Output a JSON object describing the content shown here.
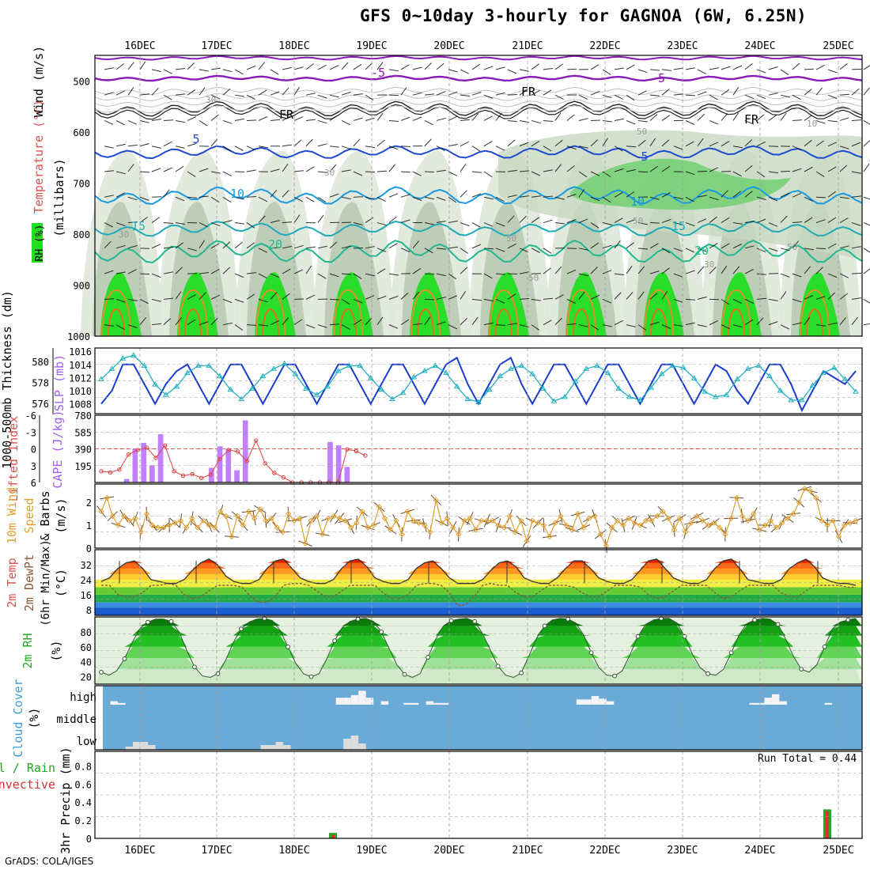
{
  "title": "GFS 0~10day 3-hourly for GAGNOA (6W, 6.25N)",
  "footer": "GrADS: COLA/IGES",
  "run_total": "Run Total = 0.44",
  "colors": {
    "grid": "#a0a0a0",
    "cloud_bg": "#6aaad6",
    "cloud_bar": "#dcdcdc",
    "cape": "#c080ff",
    "lifted": "#e04040",
    "wind": "#e0a030",
    "slp": "#1a3ccc",
    "thickness": "#20b0c0",
    "rh_green": "#22bb22",
    "precip": "#22aa22"
  },
  "chart_data": [
    {
      "panel": "upper-air",
      "type": "heatmap",
      "xlabels": [
        "16DEC",
        "17DEC",
        "18DEC",
        "19DEC",
        "20DEC",
        "21DEC",
        "22DEC",
        "23DEC",
        "24DEC",
        "25DEC"
      ],
      "ylabel_parts": [
        "RH (%)",
        "Temperature (°C)",
        "Wind (m/s)"
      ],
      "ylabel_unit": "(millibars)",
      "yticks": [
        "500",
        "600",
        "700",
        "800",
        "900",
        "1000"
      ],
      "isotherm_labels": [
        "-5",
        "-5",
        "FR",
        "FR",
        "FR",
        "5",
        "5",
        "10",
        "10",
        "15",
        "15",
        "20",
        "20"
      ],
      "rh_labels": [
        "30",
        "30",
        "50",
        "50",
        "50",
        "10",
        "30",
        "50",
        "50",
        "30"
      ]
    },
    {
      "panel": "thickness-slp",
      "type": "line",
      "ylabel_left": "1000-500mb Thickness (dm)",
      "ylabel_right": "SLP (mb)",
      "left_ticks": [
        "580",
        "578",
        "576"
      ],
      "right_ticks": [
        "1016",
        "1014",
        "1012",
        "1010",
        "1008"
      ],
      "series": [
        {
          "name": "SLP (mb)",
          "values": [
            1008,
            1010,
            1014,
            1014,
            1011,
            1008,
            1011,
            1013,
            1014,
            1011,
            1008,
            1011,
            1014,
            1014,
            1011,
            1008,
            1011,
            1014,
            1014,
            1011,
            1008,
            1011,
            1014,
            1014,
            1011,
            1008,
            1011,
            1014,
            1014,
            1011,
            1008,
            1011,
            1014,
            1015,
            1011,
            1008,
            1011,
            1014,
            1015,
            1011,
            1008,
            1011,
            1014,
            1014,
            1011,
            1008,
            1011,
            1014,
            1014,
            1011,
            1008,
            1011,
            1014,
            1014,
            1011,
            1008,
            1011,
            1014,
            1013,
            1010,
            1008,
            1011,
            1014,
            1014,
            1011,
            1007,
            1010,
            1013,
            1012,
            1011,
            1013
          ]
        },
        {
          "name": "1000-500mb Thickness (dm)",
          "values": [
            578.3,
            579.3,
            580.3,
            580.6,
            579.6,
            577.8,
            576.8,
            577.6,
            578.9,
            579.6,
            579.6,
            578.6,
            577.3,
            576.4,
            577.4,
            578.6,
            579.3,
            579.8,
            578.8,
            577.4,
            576.8,
            577.6,
            579.1,
            579.6,
            579.6,
            578.4,
            577.3,
            576.4,
            577.0,
            578.5,
            579.1,
            579.6,
            578.9,
            577.6,
            576.4,
            576.1,
            577.3,
            578.6,
            579.3,
            579.6,
            578.8,
            577.4,
            576.2,
            576.6,
            578.1,
            579.3,
            579.6,
            578.9,
            577.4,
            576.6,
            576.3,
            577.5,
            578.8,
            579.6,
            579.4,
            578.4,
            577.1,
            576.6,
            576.8,
            578.3,
            579.3,
            579.6,
            578.6,
            577.2,
            576.3,
            576.3,
            577.7,
            578.9,
            579.4,
            578.3,
            577.1
          ]
        }
      ]
    },
    {
      "panel": "cape-li",
      "type": "bar",
      "ylabel_left": "Lifted Index",
      "ylabel_right": "CAPE (J/kg)",
      "li_ticks": [
        "-6",
        "-3",
        "0",
        "3",
        "6"
      ],
      "cape_ticks": [
        "780",
        "585",
        "390",
        "195"
      ],
      "series": [
        {
          "name": "CAPE (J/kg)",
          "values": [
            0,
            0,
            0,
            40,
            390,
            460,
            200,
            560,
            0,
            0,
            0,
            0,
            0,
            170,
            420,
            390,
            140,
            720,
            0,
            0,
            0,
            0,
            0,
            0,
            0,
            0,
            0,
            470,
            430,
            180,
            0,
            0,
            0,
            0,
            0,
            0,
            0,
            0,
            0,
            0,
            0,
            0,
            0,
            0,
            0,
            0,
            0,
            0,
            0,
            0,
            0,
            0,
            0,
            0,
            0,
            0,
            0,
            0,
            0,
            0,
            0,
            0,
            0,
            0,
            0,
            0,
            0,
            0,
            0,
            0,
            0,
            0,
            0,
            0,
            0,
            0,
            0,
            0,
            0,
            0,
            0,
            0,
            0,
            0,
            0,
            0,
            0,
            0,
            0,
            0
          ]
        },
        {
          "name": "Lifted Index",
          "values": [
            4,
            4.2,
            3.7,
            1,
            0.2,
            -0.2,
            1.6,
            -0.6,
            4,
            4.8,
            4.5,
            5.2,
            4.6,
            1.8,
            0.2,
            0.5,
            2.2,
            -1.5,
            2.6,
            4.3,
            5.1,
            6,
            6,
            6,
            6,
            6,
            6,
            0.1,
            0.4,
            1.2
          ]
        }
      ]
    },
    {
      "panel": "wind10m",
      "type": "line",
      "ylabel": "10m Wind Speed & Barbs (m/s)",
      "yticks": [
        "2",
        "1",
        "0"
      ],
      "ylim": [
        0,
        2.8
      ],
      "series": [
        {
          "name": "10m Wind Speed (m/s)",
          "values": [
            1.6,
            2.2,
            1.4,
            1.0,
            1.4,
            1.2,
            1.3,
            0.7,
            1.5,
            1.0,
            0.9,
            0.9,
            1.0,
            1.1,
            1.2,
            0.9,
            1.3,
            0.9,
            1.2,
            1.0,
            0.9,
            1.6,
            1.4,
            0.5,
            1.4,
            1.0,
            1.6,
            1.3,
            1.7,
            1.2,
            1.3,
            0.9,
            0.7,
            1.5,
            1.2,
            1.3,
            0.2,
            1.2,
            1.4,
            0.6,
            1.3,
            1.4,
            1.3,
            1.2,
            0.9,
            1.1,
            1.6,
            0.9,
            1.0,
            1.8,
            1.3,
            0.8,
            1.2,
            0.6,
            1.6,
            1.2,
            1.1,
            1.0,
            0.7,
            2.1,
            1.1,
            1.3,
            0.9,
            0.6,
            1.2,
            1.3,
            0.8,
            1.2,
            1.2,
            1.2,
            1.0,
            0.9,
            1.4,
            0.7,
            1.2,
            0.3,
            1.2,
            1.1,
            1.0,
            0.5,
            1.1,
            1.4,
            1.0,
            0.8,
            1.5,
            0.9,
            1.3,
            1.4,
            0.6,
            0.1,
            0.9,
            1.2,
            1.0,
            1.3,
            1.1,
            1.0,
            1.2,
            1.2,
            1.4,
            1.6,
            1.3,
            0.8,
            1.3,
            0.7,
            1.1,
            1.4,
            1.2,
            1.0,
            1.1,
            0.9,
            0.6,
            1.3,
            2.2,
            1.4,
            1.2,
            1.5,
            0.8,
            1.0,
            1.2,
            0.9,
            1.1,
            1.3,
            1.5,
            2.0,
            2.6,
            2.5,
            2.2,
            1.2,
            1.0,
            1.2,
            0.5,
            1.0,
            1.1,
            1.2
          ]
        }
      ]
    },
    {
      "panel": "temp2m",
      "type": "area",
      "ylabel": "2m Temp 2m DewPt (6hr Min/Max) (°C)",
      "yticks": [
        "32",
        "24",
        "16",
        "8"
      ],
      "ylim": [
        5,
        40
      ],
      "series": [
        {
          "name": "2m Temp (°C)",
          "values": [
            23,
            25,
            30,
            33,
            34,
            30,
            24,
            23,
            22,
            22,
            24,
            29,
            33,
            35,
            32,
            26,
            23,
            22,
            22,
            24,
            30,
            34,
            35,
            30,
            25,
            23,
            22,
            22,
            24,
            30,
            34,
            35,
            31,
            25,
            23,
            22,
            22,
            24,
            30,
            33,
            34,
            30,
            25,
            22,
            22,
            22,
            24,
            29,
            33,
            34,
            31,
            25,
            23,
            22,
            22,
            25,
            30,
            34,
            34,
            30,
            25,
            23,
            22,
            22,
            24,
            29,
            34,
            35,
            30,
            25,
            23,
            22,
            22,
            24,
            30,
            34,
            35,
            30,
            24,
            23,
            22,
            22,
            24,
            30,
            33,
            35,
            31,
            25,
            23,
            22,
            22,
            21
          ]
        },
        {
          "name": "2m DewPt (°C)",
          "values": [
            21,
            21,
            16,
            15,
            15,
            17,
            21,
            21,
            22,
            21,
            16,
            14,
            15,
            18,
            21,
            21,
            21,
            20,
            15,
            12,
            12,
            15,
            21,
            22,
            22,
            21,
            18,
            15,
            15,
            18,
            21,
            21,
            21,
            21,
            17,
            14,
            14,
            16,
            21,
            22,
            22,
            21,
            17,
            10,
            11,
            15,
            21,
            22,
            21,
            21,
            17,
            15,
            15,
            18,
            21,
            21,
            21,
            20,
            17,
            15,
            15,
            18,
            21,
            21,
            21,
            20,
            16,
            14,
            15,
            18,
            21,
            21,
            21,
            21,
            17,
            14,
            15,
            18,
            21,
            21,
            21,
            21,
            17,
            15,
            15,
            18,
            21,
            21,
            21,
            21,
            20,
            20
          ]
        }
      ]
    },
    {
      "panel": "rh2m",
      "type": "area",
      "ylabel": "2m RH (%)",
      "yticks": [
        "80",
        "60",
        "40",
        "20"
      ],
      "ylim": [
        10,
        100
      ],
      "series": [
        {
          "name": "2m RH (%)",
          "values": [
            26,
            22,
            28,
            44,
            66,
            85,
            93,
            97,
            97,
            94,
            80,
            55,
            33,
            21,
            19,
            24,
            42,
            66,
            84,
            93,
            97,
            98,
            95,
            82,
            60,
            38,
            24,
            20,
            24,
            44,
            68,
            86,
            94,
            97,
            98,
            94,
            80,
            58,
            36,
            23,
            19,
            24,
            46,
            70,
            88,
            95,
            97,
            98,
            94,
            78,
            56,
            34,
            22,
            19,
            25,
            48,
            72,
            88,
            96,
            98,
            97,
            92,
            76,
            52,
            32,
            22,
            21,
            28,
            50,
            74,
            90,
            96,
            98,
            98,
            92,
            74,
            50,
            32,
            24,
            22,
            30,
            52,
            76,
            91,
            96,
            98,
            97,
            90,
            70,
            47,
            30,
            26,
            36,
            60,
            84,
            93,
            96,
            98
          ]
        }
      ]
    },
    {
      "panel": "cloud",
      "type": "bar",
      "ylabel": "Cloud Cover (%)",
      "level_labels": [
        "high",
        "middle",
        "low"
      ],
      "series": [
        {
          "name": "high",
          "values": [
            0,
            20,
            10,
            0,
            0,
            0,
            0,
            0,
            0,
            0,
            0,
            0,
            0,
            0,
            0,
            0,
            0,
            0,
            0,
            0,
            0,
            0,
            0,
            0,
            0,
            0,
            0,
            0,
            0,
            0,
            0,
            40,
            40,
            55,
            80,
            40,
            0,
            20,
            0,
            0,
            10,
            10,
            0,
            20,
            10,
            10,
            0,
            0,
            0,
            0,
            0,
            0,
            0,
            0,
            0,
            0,
            0,
            0,
            0,
            0,
            0,
            0,
            0,
            30,
            30,
            50,
            35,
            20,
            0,
            0,
            0,
            0,
            0,
            0,
            0,
            0,
            0,
            0,
            0,
            0,
            0,
            0,
            0,
            0,
            0,
            0,
            10,
            10,
            40,
            60,
            20,
            0,
            0,
            0,
            0,
            0,
            10,
            0,
            0,
            0,
            0
          ]
        },
        {
          "name": "low",
          "values": [
            0,
            0,
            0,
            10,
            25,
            25,
            15,
            0,
            0,
            0,
            0,
            0,
            0,
            0,
            0,
            0,
            0,
            0,
            0,
            0,
            0,
            15,
            15,
            25,
            15,
            0,
            0,
            0,
            0,
            0,
            0,
            0,
            35,
            45,
            20,
            0,
            0,
            0,
            0,
            0,
            0,
            0,
            0,
            0,
            0,
            0,
            0,
            0,
            0,
            0,
            0,
            0,
            0,
            0,
            0,
            0,
            0,
            0,
            0,
            0,
            0,
            0,
            0,
            0,
            0,
            0,
            0,
            0,
            0,
            0,
            0,
            0,
            0,
            0,
            0,
            0,
            0,
            0,
            0,
            0,
            0,
            0,
            0,
            0,
            0,
            0,
            0,
            0,
            0,
            0,
            0,
            0,
            0,
            0,
            0,
            0,
            0,
            0,
            0,
            0
          ]
        }
      ]
    },
    {
      "panel": "precip",
      "type": "bar",
      "ylabel": "3hr Precip (mm)",
      "legend_total": "Total / Rain",
      "legend_convective": "Convective",
      "yticks": [
        "0.8",
        "0.6",
        "0.4",
        "0.2",
        "0"
      ],
      "ylim": [
        0,
        0.96
      ],
      "categories": [
        "18DEC 12Z",
        "24DEC 21Z"
      ],
      "series": [
        {
          "name": "Total / Rain",
          "values": [
            0.06,
            0.32
          ]
        },
        {
          "name": "Convective",
          "values": [
            0.04,
            0.3
          ]
        }
      ]
    }
  ]
}
